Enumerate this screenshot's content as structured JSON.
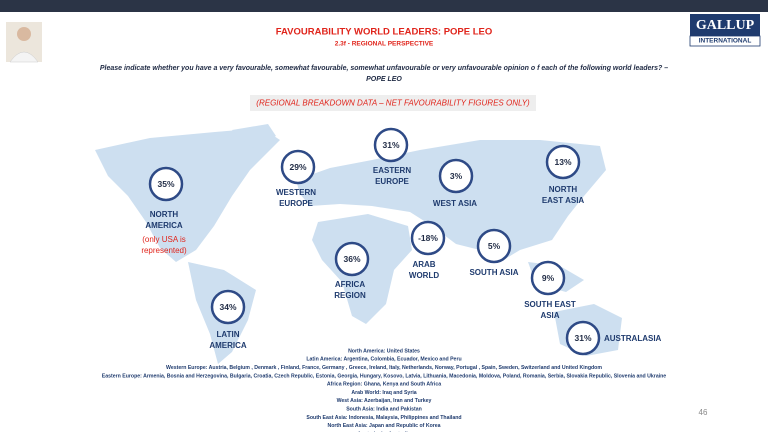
{
  "header": {
    "title": "FAVOURABILITY WORLD LEADERS: POPE LEO",
    "subtitle": "2.3f - REGIONAL PERSPECTIVE",
    "question": [
      "Please indicate whether you have a very favourable, somewhat favourable, somewhat unfavourable or very unfavourable opinion o f each of the following world leaders? –",
      "POPE LEO"
    ],
    "note": "(REGIONAL BREAKDOWN DATA – NET FAVOURABILITY FIGURES ONLY)",
    "logo": [
      "GALLUP",
      "INTERNATIONAL"
    ]
  },
  "regions": [
    {
      "value": "35%",
      "label": [
        "NORTH",
        "AMERICA"
      ],
      "remark": [
        "(only USA is",
        "represented)"
      ]
    },
    {
      "value": "29%",
      "label": [
        "WESTERN",
        "EUROPE"
      ]
    },
    {
      "value": "31%",
      "label": [
        "EASTERN",
        "EUROPE"
      ]
    },
    {
      "value": "3%",
      "label": [
        "WEST ASIA"
      ]
    },
    {
      "value": "13%",
      "label": [
        "NORTH",
        "EAST ASIA"
      ]
    },
    {
      "value": "-18%",
      "label": [
        "ARAB",
        "WORLD"
      ]
    },
    {
      "value": "5%",
      "label": [
        "SOUTH ASIA"
      ]
    },
    {
      "value": "36%",
      "label": [
        "AFRICA",
        "REGION"
      ]
    },
    {
      "value": "9%",
      "label": [
        "SOUTH EAST",
        "ASIA"
      ]
    },
    {
      "value": "31%",
      "label": [
        "AUSTRALASIA"
      ]
    },
    {
      "value": "34%",
      "label": [
        "LATIN",
        "AMERICA"
      ]
    }
  ],
  "footnotes": [
    "North America: United States",
    "Latin America: Argentina, Colombia, Ecuador, Mexico and Peru",
    "Western Europe: Austria, Belgium , Denmark , Finland, France, Germany , Greece, Ireland, Italy, Netherlands, Norway, Portugal , Spain, Sweden, Switzerland and United Kingdom",
    "Eastern Europe: Armenia, Bosnia and Herzegovina, Bulgaria, Croatia, Czech Republic, Estonia, Georgia, Hungary, Kosovo, Latvia, Lithuania, Macedonia, Moldova, Poland, Romania, Serbia, Slovakia Republic, Slovenia and Ukraine",
    "Africa Region: Ghana, Kenya and South Africa",
    "Arab World: Iraq and Syria",
    "West Asia: Azerbaijan, Iran and Turkey",
    "South Asia: India and Pakistan",
    "South East Asia: Indonesia, Malaysia, Philippines and Thailand",
    "North East Asia: Japan and Republic of Korea",
    "Australasia: Australia"
  ],
  "page_number": "46"
}
